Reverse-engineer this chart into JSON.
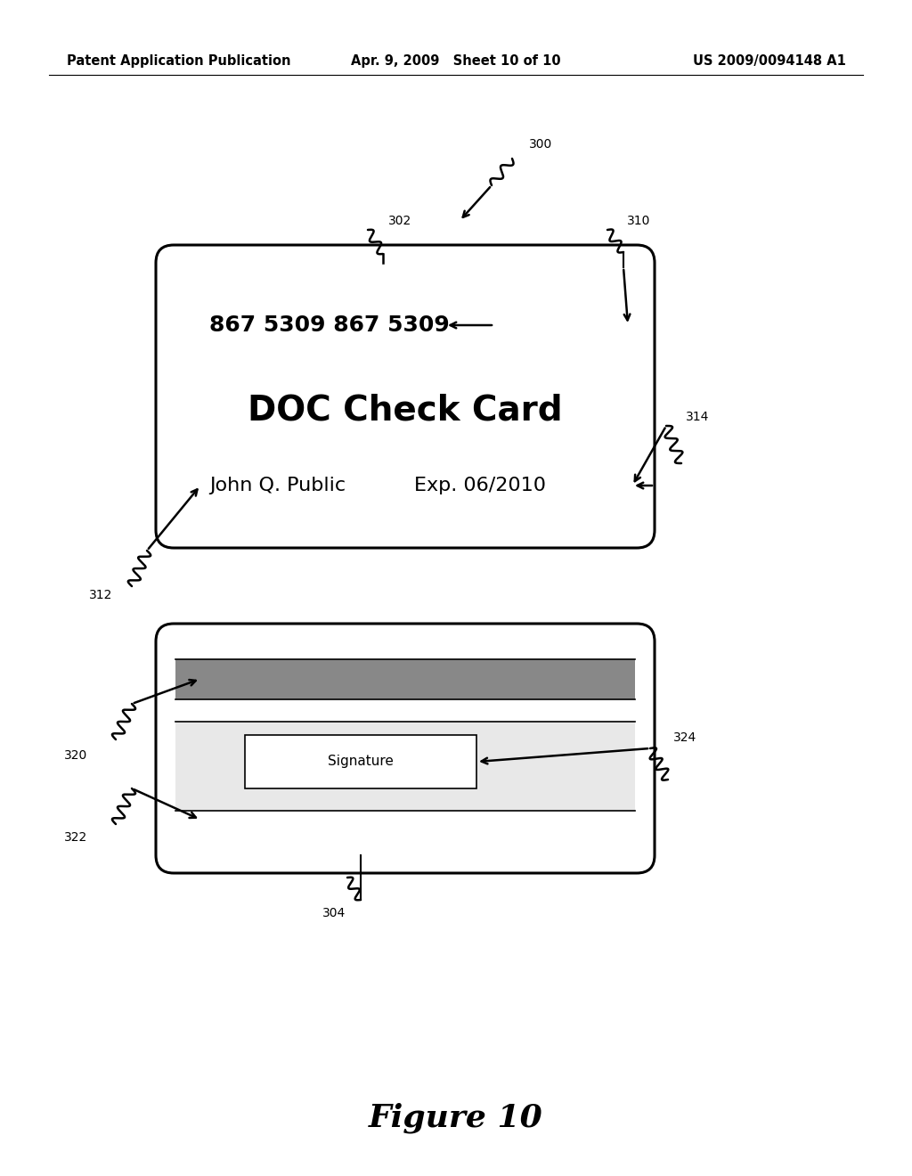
{
  "bg_color": "#ffffff",
  "header_left": "Patent Application Publication",
  "header_mid": "Apr. 9, 2009   Sheet 10 of 10",
  "header_right": "US 2009/0094148 A1",
  "header_fontsize": 10.5,
  "figure_label": "Figure 10",
  "figure_label_fontsize": 26,
  "label_300": "300",
  "label_302": "302",
  "label_304": "304",
  "label_310": "310",
  "label_312": "312",
  "label_314": "314",
  "label_320": "320",
  "label_322": "322",
  "label_324": "324",
  "card_number": "867 5309 867 5309",
  "card_name": "DOC Check Card",
  "card_holder": "John Q. Public",
  "card_exp": "Exp. 06/2010",
  "signature_label": "Signature",
  "line_color": "#000000",
  "line_width": 1.8
}
